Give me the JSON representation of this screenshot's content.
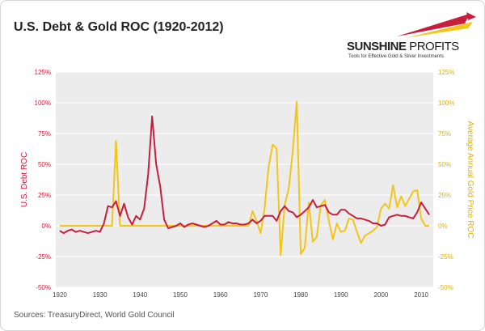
{
  "header": {
    "title": "U.S. Debt & Gold ROC (1920-2012)"
  },
  "logo": {
    "name_bold": "SUNSHINE",
    "name_light": " PROFITS",
    "tagline": "Tools for Effective Gold & Silver Investments"
  },
  "footer": {
    "source": "Sources: TreasuryDirect, World Gold Council"
  },
  "colors": {
    "debt": "#c81e3c",
    "gold": "#f2c519",
    "plot_bg": "#ececec"
  },
  "chart_data": {
    "type": "line",
    "title": "U.S. Debt & Gold ROC (1920-2012)",
    "xlabel": "",
    "ylabel": "U.S. Debt ROC",
    "y2label": "Average Annual Gold Price ROC",
    "xlim": [
      1919,
      2013
    ],
    "ylim": [
      -0.5,
      1.25
    ],
    "y2lim": [
      -0.5,
      1.25
    ],
    "x_ticks": [
      1920,
      1930,
      1940,
      1950,
      1960,
      1970,
      1980,
      1990,
      2000,
      2010
    ],
    "y_ticks": [
      "-50%",
      "-25%",
      "0%",
      "25%",
      "50%",
      "75%",
      "100%",
      "125%"
    ],
    "y_tick_values": [
      -0.5,
      -0.25,
      0,
      0.25,
      0.5,
      0.75,
      1.0,
      1.25
    ],
    "grid": "horizontal",
    "series": [
      {
        "name": "U.S. Debt ROC",
        "axis": "left",
        "color": "#c81e3c",
        "x": [
          1920,
          1921,
          1922,
          1923,
          1924,
          1925,
          1926,
          1927,
          1928,
          1929,
          1930,
          1931,
          1932,
          1933,
          1934,
          1935,
          1936,
          1937,
          1938,
          1939,
          1940,
          1941,
          1942,
          1943,
          1944,
          1945,
          1946,
          1947,
          1948,
          1949,
          1950,
          1951,
          1952,
          1953,
          1954,
          1955,
          1956,
          1957,
          1958,
          1959,
          1960,
          1961,
          1962,
          1963,
          1964,
          1965,
          1966,
          1967,
          1968,
          1969,
          1970,
          1971,
          1972,
          1973,
          1974,
          1975,
          1976,
          1977,
          1978,
          1979,
          1980,
          1981,
          1982,
          1983,
          1984,
          1985,
          1986,
          1987,
          1988,
          1989,
          1990,
          1991,
          1992,
          1993,
          1994,
          1995,
          1996,
          1997,
          1998,
          1999,
          2000,
          2001,
          2002,
          2003,
          2004,
          2005,
          2006,
          2007,
          2008,
          2009,
          2010,
          2011,
          2012
        ],
        "y": [
          -0.04,
          -0.06,
          -0.04,
          -0.03,
          -0.05,
          -0.04,
          -0.05,
          -0.06,
          -0.05,
          -0.04,
          -0.05,
          0.02,
          0.16,
          0.15,
          0.2,
          0.08,
          0.18,
          0.07,
          0.01,
          0.08,
          0.05,
          0.14,
          0.42,
          0.89,
          0.5,
          0.32,
          0.05,
          -0.02,
          -0.01,
          0.0,
          0.02,
          -0.01,
          0.01,
          0.02,
          0.01,
          0.0,
          -0.01,
          0.0,
          0.02,
          0.04,
          0.01,
          0.01,
          0.03,
          0.02,
          0.02,
          0.01,
          0.01,
          0.02,
          0.05,
          0.02,
          0.04,
          0.08,
          0.08,
          0.08,
          0.04,
          0.12,
          0.16,
          0.12,
          0.11,
          0.07,
          0.09,
          0.12,
          0.15,
          0.21,
          0.15,
          0.16,
          0.17,
          0.11,
          0.09,
          0.09,
          0.13,
          0.13,
          0.1,
          0.08,
          0.06,
          0.06,
          0.05,
          0.04,
          0.02,
          0.02,
          0.0,
          0.01,
          0.07,
          0.08,
          0.09,
          0.08,
          0.08,
          0.07,
          0.06,
          0.11,
          0.19,
          0.14,
          0.09
        ]
      },
      {
        "name": "Average Annual Gold Price ROC",
        "axis": "right",
        "color": "#f2c519",
        "x": [
          1920,
          1921,
          1922,
          1923,
          1924,
          1925,
          1926,
          1927,
          1928,
          1929,
          1930,
          1931,
          1932,
          1933,
          1934,
          1935,
          1936,
          1937,
          1938,
          1939,
          1940,
          1941,
          1942,
          1943,
          1944,
          1945,
          1946,
          1947,
          1948,
          1949,
          1950,
          1951,
          1952,
          1953,
          1954,
          1955,
          1956,
          1957,
          1958,
          1959,
          1960,
          1961,
          1962,
          1963,
          1964,
          1965,
          1966,
          1967,
          1968,
          1969,
          1970,
          1971,
          1972,
          1973,
          1974,
          1975,
          1976,
          1977,
          1978,
          1979,
          1980,
          1981,
          1982,
          1983,
          1984,
          1985,
          1986,
          1987,
          1988,
          1989,
          1990,
          1991,
          1992,
          1993,
          1994,
          1995,
          1996,
          1997,
          1998,
          1999,
          2000,
          2001,
          2002,
          2003,
          2004,
          2005,
          2006,
          2007,
          2008,
          2009,
          2010,
          2011,
          2012
        ],
        "y": [
          0,
          0,
          0,
          0,
          0,
          0,
          0,
          0,
          0,
          0,
          0,
          0,
          0,
          0,
          0.69,
          0.0,
          0,
          0,
          0,
          0,
          0,
          0,
          0,
          0,
          0,
          0,
          0,
          0,
          0,
          0,
          0,
          0,
          0,
          0,
          0,
          0,
          0,
          0,
          0,
          0,
          0,
          0,
          0,
          0,
          0,
          0,
          0,
          0,
          0.12,
          0.04,
          -0.06,
          0.14,
          0.48,
          0.66,
          0.63,
          -0.24,
          0.17,
          0.3,
          0.6,
          1.01,
          -0.23,
          -0.18,
          0.19,
          -0.13,
          -0.09,
          0.17,
          0.21,
          0.04,
          -0.11,
          0.02,
          -0.05,
          -0.04,
          0.06,
          0.05,
          -0.05,
          -0.14,
          -0.08,
          -0.06,
          -0.04,
          -0.01,
          0.14,
          0.18,
          0.14,
          0.33,
          0.15,
          0.24,
          0.16,
          0.22,
          0.28,
          0.29,
          0.06,
          0.0,
          0.0
        ]
      }
    ]
  }
}
